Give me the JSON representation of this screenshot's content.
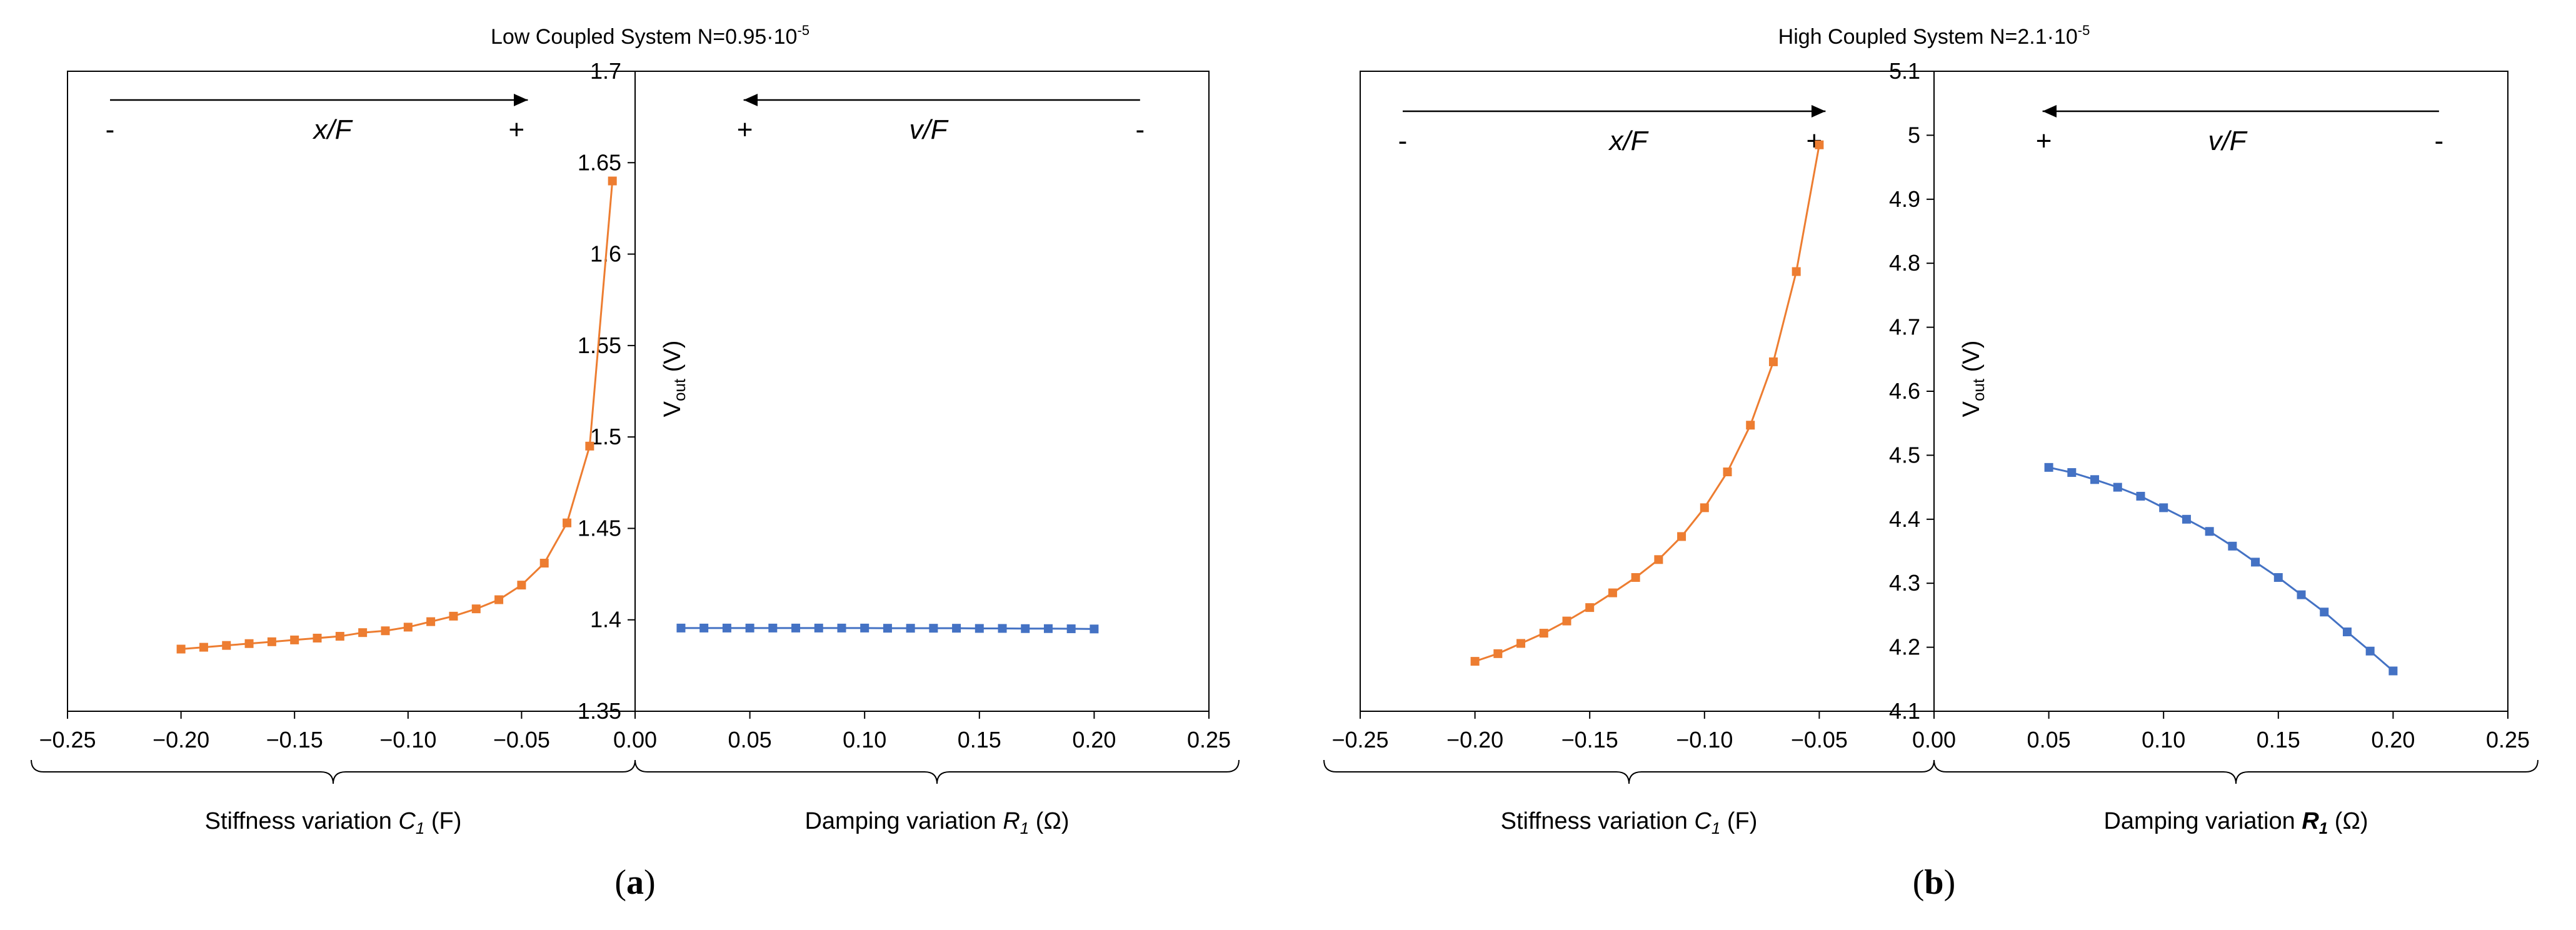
{
  "colors": {
    "stiffness": "#ED7D31",
    "damping": "#4472C4",
    "axis": "#000000"
  },
  "panels": [
    {
      "id": "a",
      "title_text": "Low Coupled System N=0.95·10",
      "title_exp": "-5",
      "panel_label": "a",
      "ylabel_main": "V",
      "ylabel_sub": "out",
      "ylabel_unit": " (V)",
      "left_arrow": {
        "minus": "-",
        "label": "x/F",
        "plus": "+"
      },
      "right_arrow": {
        "plus": "+",
        "label": "v/F",
        "minus": "-"
      },
      "left_axis_label": {
        "prefix": "Stiffness variation ",
        "symbol": "C",
        "sub": "1",
        "unit": " (F)"
      },
      "right_axis_label": {
        "prefix": "Damping variation ",
        "symbol": "R",
        "sub": "1",
        "unit": " (Ω)"
      }
    },
    {
      "id": "b",
      "title_text": "High Coupled System N=2.1·10",
      "title_exp": "-5",
      "panel_label": "b",
      "ylabel_main": "V",
      "ylabel_sub": "out",
      "ylabel_unit": " (V)",
      "left_arrow": {
        "minus": "-",
        "label": "x/F",
        "plus": "+"
      },
      "right_arrow": {
        "plus": "+",
        "label": "v/F",
        "minus": "-"
      },
      "left_axis_label": {
        "prefix": "Stiffness variation ",
        "symbol": "C",
        "sub": "1",
        "unit": " (F)"
      },
      "right_axis_label": {
        "prefix": "Damping variation ",
        "symbol": "R",
        "sub": "1",
        "unit": " (Ω)"
      }
    }
  ],
  "chart_data": [
    {
      "type": "line",
      "panel": "a",
      "title": "Low Coupled System N=0.95·10-5",
      "ylabel": "Vout (V)",
      "ylim": [
        1.35,
        1.7
      ],
      "yticks": [
        1.35,
        1.4,
        1.45,
        1.5,
        1.55,
        1.6,
        1.65,
        1.7
      ],
      "ytick_labels": [
        "1.35",
        "1.4",
        "1.45",
        "1.5",
        "1.55",
        "1.6",
        "1.65",
        "1.7"
      ],
      "xlim_left": [
        -0.25,
        0
      ],
      "xticks_left": [
        -0.25,
        -0.2,
        -0.15,
        -0.1,
        -0.05,
        0
      ],
      "xtick_labels_left": [
        "−0.25",
        "−0.20",
        "−0.15",
        "−0.10",
        "−0.05",
        "0.00"
      ],
      "xlim_right": [
        0,
        0.25
      ],
      "xticks_right": [
        0.05,
        0.1,
        0.15,
        0.2,
        0.25
      ],
      "xtick_labels_right": [
        "0.05",
        "0.10",
        "0.15",
        "0.20",
        "0.25"
      ],
      "series": [
        {
          "name": "Stiffness variation C1 (F)",
          "side": "left",
          "color": "#ED7D31",
          "marker": "square",
          "x": [
            -0.2,
            -0.19,
            -0.18,
            -0.17,
            -0.16,
            -0.15,
            -0.14,
            -0.13,
            -0.12,
            -0.11,
            -0.1,
            -0.09,
            -0.08,
            -0.07,
            -0.06,
            -0.05,
            -0.04,
            -0.03,
            -0.02,
            -0.01
          ],
          "y": [
            1.384,
            1.385,
            1.386,
            1.387,
            1.388,
            1.389,
            1.39,
            1.391,
            1.393,
            1.394,
            1.396,
            1.399,
            1.402,
            1.406,
            1.411,
            1.419,
            1.431,
            1.453,
            1.495,
            1.64
          ]
        },
        {
          "name": "Damping variation R1 (Ω)",
          "side": "right",
          "color": "#4472C4",
          "marker": "square",
          "x": [
            0.02,
            0.03,
            0.04,
            0.05,
            0.06,
            0.07,
            0.08,
            0.09,
            0.1,
            0.11,
            0.12,
            0.13,
            0.14,
            0.15,
            0.16,
            0.17,
            0.18,
            0.19,
            0.2
          ],
          "y": [
            1.3955,
            1.3955,
            1.3955,
            1.3955,
            1.3955,
            1.3955,
            1.3955,
            1.3955,
            1.3955,
            1.3954,
            1.3954,
            1.3954,
            1.3954,
            1.3953,
            1.3953,
            1.3952,
            1.3952,
            1.3951,
            1.395
          ]
        }
      ]
    },
    {
      "type": "line",
      "panel": "b",
      "title": "High Coupled System N=2.1·10-5",
      "ylabel": "Vout (V)",
      "ylim": [
        4.1,
        5.1
      ],
      "yticks": [
        4.1,
        4.2,
        4.3,
        4.4,
        4.5,
        4.6,
        4.7,
        4.8,
        4.9,
        5.0,
        5.1
      ],
      "ytick_labels": [
        "4.1",
        "4.2",
        "4.3",
        "4.4",
        "4.5",
        "4.6",
        "4.7",
        "4.8",
        "4.9",
        "5",
        "5.1"
      ],
      "xlim_left": [
        -0.25,
        0
      ],
      "xticks_left": [
        -0.25,
        -0.2,
        -0.15,
        -0.1,
        -0.05,
        0
      ],
      "xtick_labels_left": [
        "−0.25",
        "−0.20",
        "−0.15",
        "−0.10",
        "−0.05",
        "0.00"
      ],
      "xlim_right": [
        0,
        0.25
      ],
      "xticks_right": [
        0.05,
        0.1,
        0.15,
        0.2,
        0.25
      ],
      "xtick_labels_right": [
        "0.05",
        "0.10",
        "0.15",
        "0.20",
        "0.25"
      ],
      "series": [
        {
          "name": "Stiffness variation C1 (F)",
          "side": "left",
          "color": "#ED7D31",
          "marker": "square",
          "x": [
            -0.2,
            -0.19,
            -0.18,
            -0.17,
            -0.16,
            -0.15,
            -0.14,
            -0.13,
            -0.12,
            -0.11,
            -0.1,
            -0.09,
            -0.08,
            -0.07,
            -0.06,
            -0.05
          ],
          "y": [
            4.178,
            4.19,
            4.206,
            4.222,
            4.241,
            4.262,
            4.285,
            4.309,
            4.337,
            4.373,
            4.418,
            4.474,
            4.547,
            4.646,
            4.787,
            4.985
          ]
        },
        {
          "name": "Damping variation R1 (Ω)",
          "side": "right",
          "color": "#4472C4",
          "marker": "square",
          "x": [
            0.05,
            0.06,
            0.07,
            0.08,
            0.09,
            0.1,
            0.11,
            0.12,
            0.13,
            0.14,
            0.15,
            0.16,
            0.17,
            0.18,
            0.19,
            0.2
          ],
          "y": [
            4.481,
            4.473,
            4.462,
            4.45,
            4.436,
            4.418,
            4.4,
            4.381,
            4.358,
            4.333,
            4.309,
            4.282,
            4.255,
            4.224,
            4.194,
            4.163
          ]
        }
      ]
    }
  ]
}
